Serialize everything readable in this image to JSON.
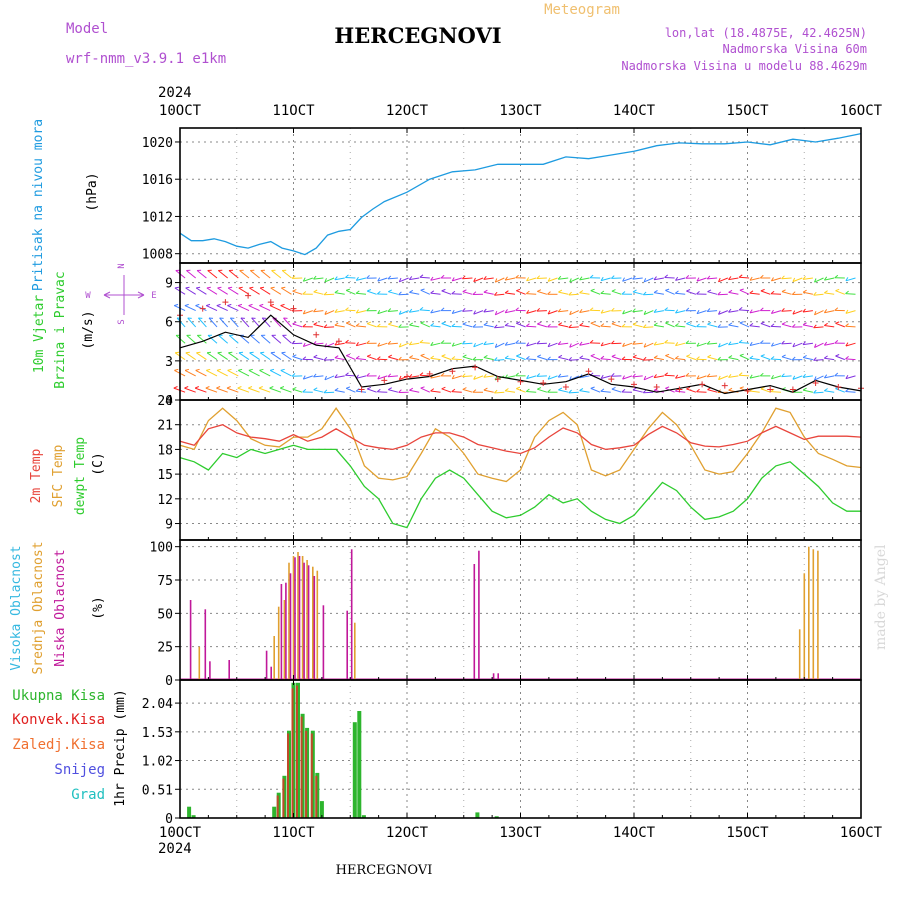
{
  "header": {
    "model_label": "Model",
    "model_name": "wrf-nmm_v3.9.1 e1km",
    "station": "HERCEGNOVI",
    "meteogram_label": "Meteogram",
    "lonlat": "lon,lat (18.4875E, 42.4625N)",
    "elevation": "Nadmorska Visina 60m",
    "model_elevation": "Nadmorska Visina u modelu 88.4629m",
    "footer_station": "HERCEGNOVI",
    "credit": "made by Angel"
  },
  "colors": {
    "pressure": "#1e9be0",
    "temp2m": "#e8453c",
    "sfc_temp": "#e0a030",
    "dewpoint": "#2ecc2e",
    "cloud_high": "#35b8e0",
    "cloud_mid": "#e0a030",
    "cloud_low": "#c0189a",
    "precip_total": "#2db52d",
    "precip_conv": "#e02020",
    "precip_frozen": "#f07030",
    "snow": "#5050e0",
    "hail": "#20c0c0",
    "purple_text": "#b050d0",
    "title_orange": "#f0c070",
    "wind_gust_marker": "#e03030",
    "wind_speed_line": "#000000",
    "credit": "#d8d8d8"
  },
  "time_axis": {
    "year": "2024",
    "ticks": [
      "10OCT",
      "11OCT",
      "12OCT",
      "13OCT",
      "14OCT",
      "15OCT",
      "16OCT"
    ]
  },
  "chart_data": [
    {
      "type": "line",
      "panel": "pressure",
      "ylabel_main": "Pritisak na nivou mora",
      "ylabel_unit": "(hPa)",
      "ylim": [
        1007,
        1021.5
      ],
      "yticks": [
        1008,
        1012,
        1016,
        1020
      ],
      "x_days": [
        0,
        0.1,
        0.2,
        0.3,
        0.4,
        0.5,
        0.6,
        0.7,
        0.8,
        0.9,
        1.0,
        1.1,
        1.2,
        1.3,
        1.4,
        1.5,
        1.6,
        1.7,
        1.8,
        2.0,
        2.2,
        2.4,
        2.6,
        2.8,
        3.0,
        3.2,
        3.4,
        3.6,
        3.8,
        4.0,
        4.2,
        4.4,
        4.6,
        4.8,
        5.0,
        5.2,
        5.4,
        5.6,
        5.8,
        6.0
      ],
      "series": [
        {
          "values": [
            1010.2,
            1009.4,
            1009.4,
            1009.6,
            1009.3,
            1008.8,
            1008.6,
            1009.0,
            1009.3,
            1008.6,
            1008.3,
            1007.9,
            1008.6,
            1010.0,
            1010.4,
            1010.6,
            1011.9,
            1012.8,
            1013.6,
            1014.6,
            1016.0,
            1016.8,
            1017.0,
            1017.6,
            1017.6,
            1017.6,
            1018.4,
            1018.2,
            1018.6,
            1019.0,
            1019.6,
            1019.9,
            1019.8,
            1019.8,
            1020.0,
            1019.7,
            1020.3,
            1020.0,
            1020.4,
            1020.9
          ]
        }
      ]
    },
    {
      "type": "line",
      "panel": "wind",
      "ylabel_main": "10m Vjetar",
      "ylabel_sub": "Brzina i Pravac",
      "ylabel_unit": "(m/s)",
      "direction_key": {
        "w": "W",
        "e": "E",
        "n": "N",
        "s": "S"
      },
      "ylim": [
        0,
        10.5
      ],
      "yticks": [
        0,
        3,
        6,
        9
      ],
      "x_days": [
        0,
        0.2,
        0.4,
        0.6,
        0.8,
        1.0,
        1.2,
        1.4,
        1.6,
        1.8,
        2.0,
        2.2,
        2.4,
        2.6,
        2.8,
        3.0,
        3.2,
        3.4,
        3.6,
        3.8,
        4.0,
        4.2,
        4.4,
        4.6,
        4.8,
        5.0,
        5.2,
        5.4,
        5.6,
        5.8,
        6.0
      ],
      "series": [
        {
          "name": "speed",
          "values": [
            4.0,
            4.5,
            5.2,
            4.8,
            6.5,
            5.0,
            4.2,
            4.0,
            1.0,
            1.2,
            1.6,
            1.8,
            2.4,
            2.6,
            1.8,
            1.5,
            1.2,
            1.4,
            2.0,
            1.2,
            1.0,
            0.6,
            0.9,
            1.2,
            0.5,
            0.8,
            1.1,
            0.6,
            1.5,
            1.0,
            0.7
          ]
        },
        {
          "name": "gust",
          "values": [
            6.5,
            7.0,
            7.5,
            8.0,
            7.5,
            7.0,
            5.0,
            4.5,
            0.8,
            1.5,
            1.8,
            2.0,
            2.2,
            2.5,
            1.6,
            1.4,
            1.3,
            1.0,
            2.2,
            1.6,
            1.2,
            1.0,
            0.8,
            1.2,
            1.1,
            0.7,
            0.8,
            0.8,
            1.3,
            1.0,
            0.9
          ]
        }
      ]
    },
    {
      "type": "line",
      "panel": "temperature",
      "ylabels": [
        "2m Temp",
        "SFC Temp",
        "dewpt Temp"
      ],
      "ylabel_unit": "(C)",
      "ylim": [
        7,
        24
      ],
      "yticks": [
        9,
        12,
        15,
        18,
        21,
        24
      ],
      "x_days": [
        0,
        0.125,
        0.25,
        0.375,
        0.5,
        0.625,
        0.75,
        0.875,
        1.0,
        1.125,
        1.25,
        1.375,
        1.5,
        1.625,
        1.75,
        1.875,
        2.0,
        2.125,
        2.25,
        2.375,
        2.5,
        2.625,
        2.75,
        2.875,
        3.0,
        3.125,
        3.25,
        3.375,
        3.5,
        3.625,
        3.75,
        3.875,
        4.0,
        4.125,
        4.25,
        4.375,
        4.5,
        4.625,
        4.75,
        4.875,
        5.0,
        5.125,
        5.25,
        5.375,
        5.5,
        5.625,
        5.75,
        5.875,
        6.0
      ],
      "series": [
        {
          "name": "2m Temp",
          "values": [
            19.0,
            18.5,
            20.5,
            21.0,
            20.0,
            19.5,
            19.3,
            19.0,
            19.8,
            19.0,
            19.5,
            20.5,
            19.5,
            18.5,
            18.2,
            18.0,
            18.5,
            19.5,
            20.0,
            20.0,
            19.5,
            18.6,
            18.2,
            17.8,
            17.5,
            18.2,
            19.5,
            20.6,
            20.0,
            18.6,
            18.0,
            18.2,
            18.5,
            19.8,
            20.8,
            20.0,
            18.8,
            18.4,
            18.3,
            18.6,
            19.0,
            20.0,
            20.8,
            20.0,
            19.2,
            19.6,
            19.6,
            19.6,
            19.5
          ]
        },
        {
          "name": "SFC Temp",
          "values": [
            18.5,
            18.0,
            21.5,
            23.0,
            21.5,
            19.3,
            18.5,
            18.3,
            19.5,
            19.5,
            20.5,
            23.0,
            20.5,
            16.0,
            14.5,
            14.3,
            14.7,
            17.5,
            20.5,
            19.5,
            17.5,
            15.0,
            14.5,
            14.1,
            15.5,
            19.5,
            21.5,
            22.5,
            21.0,
            15.5,
            14.8,
            15.5,
            18.0,
            20.5,
            22.5,
            21.0,
            18.5,
            15.5,
            15.0,
            15.3,
            17.5,
            20.0,
            23.0,
            22.5,
            19.5,
            17.5,
            16.8,
            16.0,
            15.8
          ]
        },
        {
          "name": "dewpt Temp",
          "values": [
            17.0,
            16.5,
            15.5,
            17.5,
            17.0,
            18.0,
            17.5,
            18.0,
            18.5,
            18.0,
            18.0,
            18.0,
            16.0,
            13.5,
            12.0,
            9.0,
            8.5,
            12.0,
            14.5,
            15.5,
            14.5,
            12.5,
            10.5,
            9.7,
            10.0,
            11.0,
            12.5,
            11.5,
            12.0,
            10.5,
            9.5,
            9.0,
            10.0,
            12.0,
            14.0,
            13.0,
            11.0,
            9.5,
            9.8,
            10.5,
            12.0,
            14.5,
            16.0,
            16.5,
            15.0,
            13.5,
            11.5,
            10.5,
            10.5
          ]
        }
      ]
    },
    {
      "type": "bar",
      "panel": "cloud",
      "ylabels": [
        "Visoka Oblacnost",
        "Srednja Oblacnost",
        "Niska Oblacnost"
      ],
      "ylabel_unit": "(%)",
      "ylim": [
        0,
        105
      ],
      "yticks": [
        0,
        25,
        50,
        75,
        100
      ],
      "series": [
        {
          "name": "Visoka Oblacnost",
          "x_days": [],
          "values": []
        },
        {
          "name": "Srednja Oblacnost",
          "x_days": [
            0.17,
            0.83,
            0.87,
            0.92,
            0.96,
            1.0,
            1.04,
            1.08,
            1.12,
            1.17,
            1.21,
            1.54,
            5.46,
            5.5,
            5.54,
            5.58,
            5.62
          ],
          "values": [
            25,
            33,
            55,
            60,
            88,
            93,
            96,
            93,
            90,
            85,
            82,
            43,
            38,
            80,
            100,
            98,
            97
          ]
        },
        {
          "name": "Niska Oblacnost",
          "x_days": [
            0.08,
            0.21,
            0.25,
            0.42,
            0.75,
            0.79,
            0.88,
            0.92,
            0.96,
            1.0,
            1.04,
            1.08,
            1.12,
            1.17,
            1.25,
            1.46,
            1.5,
            2.58,
            2.62,
            2.75,
            2.79
          ],
          "values": [
            60,
            53,
            14,
            15,
            22,
            10,
            72,
            73,
            80,
            92,
            93,
            88,
            86,
            78,
            56,
            52,
            98,
            87,
            97,
            5,
            5
          ]
        }
      ]
    },
    {
      "type": "bar",
      "panel": "precipitation",
      "ylabels": [
        "Ukupna Kisa",
        "Konvek.Kisa",
        "Zaledj.Kisa",
        "Snijeg",
        "Grad"
      ],
      "ylabel_main": "1hr Precip (mm)",
      "ylim": [
        0,
        2.45
      ],
      "yticks": [
        "0",
        "0.51",
        "1.02",
        "1.53",
        "2.04"
      ],
      "series": [
        {
          "name": "Ukupna Kisa",
          "x_days": [
            0.08,
            0.12,
            0.83,
            0.87,
            0.92,
            0.96,
            1.0,
            1.04,
            1.08,
            1.12,
            1.17,
            1.21,
            1.25,
            1.54,
            1.58,
            1.62,
            2.62,
            2.79
          ],
          "values": [
            0.2,
            0.05,
            0.2,
            0.45,
            0.75,
            1.55,
            2.4,
            2.4,
            1.85,
            1.6,
            1.55,
            0.8,
            0.3,
            1.7,
            1.9,
            0.05,
            0.1,
            0.03
          ]
        },
        {
          "name": "Konvek.Kisa",
          "x_days": [
            0.87,
            0.92,
            0.96,
            1.0,
            1.04,
            1.08,
            1.12,
            1.17,
            1.21
          ],
          "values": [
            0.4,
            0.7,
            1.5,
            2.3,
            2.35,
            1.8,
            1.55,
            1.5,
            0.75
          ]
        }
      ]
    }
  ]
}
